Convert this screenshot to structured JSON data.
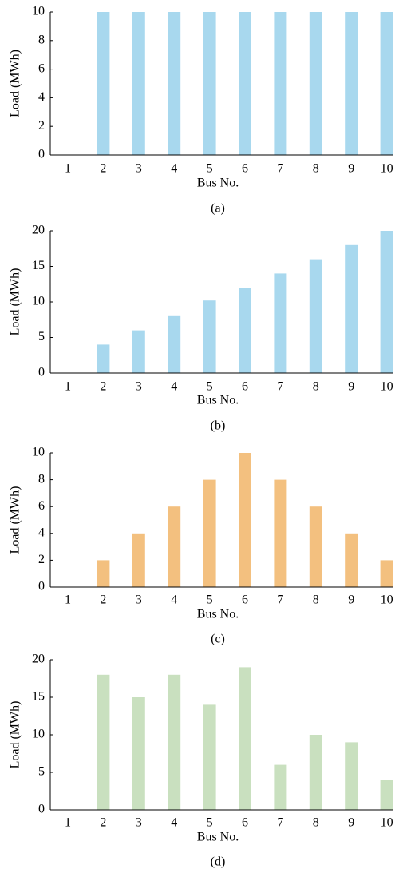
{
  "chart_data": [
    {
      "type": "bar",
      "caption": "(a)",
      "x_label": "Bus No.",
      "y_label": "Load (MWh)",
      "color": "#a8d8ee",
      "categories": [
        "1",
        "2",
        "3",
        "4",
        "5",
        "6",
        "7",
        "8",
        "9",
        "10"
      ],
      "values": [
        0,
        10,
        10,
        10,
        10,
        10,
        10,
        10,
        10,
        10
      ],
      "ylim": [
        0,
        10
      ],
      "yticks": [
        0,
        2,
        4,
        6,
        8,
        10
      ]
    },
    {
      "type": "bar",
      "caption": "(b)",
      "x_label": "Bus No.",
      "y_label": "Load (MWh)",
      "color": "#a8d8ee",
      "categories": [
        "1",
        "2",
        "3",
        "4",
        "5",
        "6",
        "7",
        "8",
        "9",
        "10"
      ],
      "values": [
        0,
        4,
        6,
        8,
        10.2,
        12,
        14,
        16,
        18,
        20
      ],
      "ylim": [
        0,
        20
      ],
      "yticks": [
        0,
        5,
        10,
        15,
        20
      ]
    },
    {
      "type": "bar",
      "caption": "(c)",
      "x_label": "Bus No.",
      "y_label": "Load (MWh)",
      "color": "#f3c07f",
      "categories": [
        "1",
        "2",
        "3",
        "4",
        "5",
        "6",
        "7",
        "8",
        "9",
        "10"
      ],
      "values": [
        0,
        2,
        4,
        6,
        8,
        10,
        8,
        6,
        4,
        2
      ],
      "ylim": [
        0,
        10
      ],
      "yticks": [
        0,
        2,
        4,
        6,
        8,
        10
      ]
    },
    {
      "type": "bar",
      "caption": "(d)",
      "x_label": "Bus No.",
      "y_label": "Load (MWh)",
      "color": "#c9e0bf",
      "categories": [
        "1",
        "2",
        "3",
        "4",
        "5",
        "6",
        "7",
        "8",
        "9",
        "10"
      ],
      "values": [
        0,
        18,
        15,
        18,
        14,
        19,
        6,
        10,
        9,
        4
      ],
      "ylim": [
        0,
        20
      ],
      "yticks": [
        0,
        5,
        10,
        15,
        20
      ]
    }
  ]
}
